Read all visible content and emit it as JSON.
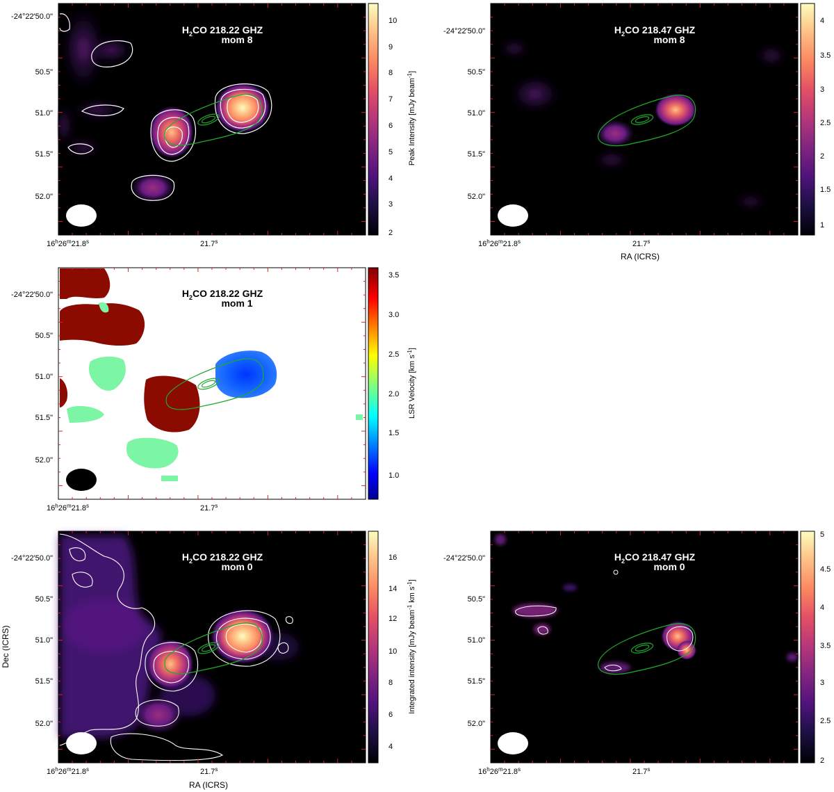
{
  "figure": {
    "panels": [
      {
        "id": "p1",
        "title_main": "H",
        "title_sub": "2",
        "title_rest": "CO 218.22 GHZ",
        "title_line2": "mom 8",
        "dec_ticks": [
          "-24°22'50.0\"",
          "50.5\"",
          "51.0\"",
          "51.5\"",
          "52.0\""
        ],
        "ra_ticks": [
          "16",
          "h",
          "26",
          "m",
          "21.8",
          "s",
          "21.7",
          "s"
        ],
        "xlabel": "",
        "ylabel": "",
        "cbar_ticks": [
          "10",
          "9",
          "8",
          "7",
          "6",
          "5",
          "4",
          "3",
          "2"
        ],
        "cbar_label": "Peak Intensity [mJy beam",
        "cbar_label_sup": "-1",
        "cbar_label_end": "]",
        "cmap": "magma",
        "background": "#000000",
        "beam_color": "#ffffff"
      },
      {
        "id": "p2",
        "title_main": "H",
        "title_sub": "2",
        "title_rest": "CO 218.47 GHZ",
        "title_line2": "mom 8",
        "dec_ticks": [
          "-24°22'50.0\"",
          "50.5\"",
          "51.0\"",
          "51.5\"",
          "52.0\""
        ],
        "ra_ticks": [
          "16",
          "h",
          "26",
          "m",
          "21.8",
          "s",
          "21.7",
          "s"
        ],
        "xlabel": "RA (ICRS)",
        "ylabel": "",
        "cbar_ticks": [
          "4",
          "3.5",
          "3",
          "2.5",
          "2",
          "1.5",
          "1"
        ],
        "cbar_label": "",
        "cbar_label_sup": "",
        "cbar_label_end": "",
        "cmap": "magma",
        "background": "#000000",
        "beam_color": "#ffffff"
      },
      {
        "id": "p3",
        "title_main": "H",
        "title_sub": "2",
        "title_rest": "CO 218.22 GHZ",
        "title_line2": "mom 1",
        "dec_ticks": [
          "-24°22'50.0\"",
          "50.5\"",
          "51.0\"",
          "51.5\"",
          "52.0\""
        ],
        "ra_ticks": [
          "16",
          "h",
          "26",
          "m",
          "21.8",
          "s",
          "21.7",
          "s"
        ],
        "xlabel": "",
        "ylabel": "",
        "cbar_ticks": [
          "3.5",
          "3.0",
          "2.5",
          "2.0",
          "1.5",
          "1.0"
        ],
        "cbar_label": "LSR Velocity [km s",
        "cbar_label_sup": "-1",
        "cbar_label_end": "]",
        "cmap": "jet",
        "background": "#ffffff",
        "beam_color": "#000000"
      },
      {
        "id": "p4",
        "title_main": "H",
        "title_sub": "2",
        "title_rest": "CO 218.22 GHZ",
        "title_line2": "mom 0",
        "dec_ticks": [
          "-24°22'50.0\"",
          "50.5\"",
          "51.0\"",
          "51.5\"",
          "52.0\""
        ],
        "ra_ticks": [
          "16",
          "h",
          "26",
          "m",
          "21.8",
          "s",
          "21.7",
          "s"
        ],
        "xlabel": "RA (ICRS)",
        "ylabel": "Dec (ICRS)",
        "cbar_ticks": [
          "16",
          "14",
          "12",
          "10",
          "8",
          "6",
          "4"
        ],
        "cbar_label": "Integrated intensity [mJy beam",
        "cbar_label_sup": "-1",
        "cbar_label_end": " km s",
        "cbar_label_sup2": "-1",
        "cbar_label_end2": "]",
        "cmap": "magma",
        "background": "#000000",
        "beam_color": "#ffffff"
      },
      {
        "id": "p5",
        "title_main": "H",
        "title_sub": "2",
        "title_rest": "CO 218.47 GHZ",
        "title_line2": "mom 0",
        "dec_ticks": [
          "-24°22'50.0\"",
          "50.5\"",
          "51.0\"",
          "51.5\"",
          "52.0\""
        ],
        "ra_ticks": [
          "16",
          "h",
          "26",
          "m",
          "21.8",
          "s",
          "21.7",
          "s"
        ],
        "xlabel": "",
        "ylabel": "",
        "cbar_ticks": [
          "5",
          "4.5",
          "4",
          "3.5",
          "3",
          "2.5",
          "2"
        ],
        "cbar_label": "",
        "cbar_label_sup": "",
        "cbar_label_end": "",
        "cmap": "magma",
        "background": "#000000",
        "beam_color": "#ffffff"
      }
    ]
  },
  "chart_data": [
    {
      "type": "heatmap",
      "panel": "p1",
      "quantity": "mom 8",
      "colorbar_range": [
        1.9,
        10.5
      ],
      "xlabel": "",
      "ylabel": "",
      "x_ticks": [
        "16h26m21.8s",
        "21.7s"
      ],
      "y_ticks": [
        "-24°22'50.0\"",
        "50.5\"",
        "51.0\"",
        "51.5\"",
        "52.0\""
      ],
      "sources": [
        {
          "ra_s": 21.688,
          "dec_arcsec": 51.0,
          "peak": 10.3
        },
        {
          "ra_s": 21.734,
          "dec_arcsec": 51.25,
          "peak": 6.5
        },
        {
          "ra_s": 21.749,
          "dec_arcsec": 51.95,
          "peak": 3.6
        }
      ]
    },
    {
      "type": "heatmap",
      "panel": "p2",
      "quantity": "mom 8",
      "colorbar_range": [
        0.85,
        4.3
      ],
      "xlabel": "RA (ICRS)",
      "ylabel": "",
      "x_ticks": [
        "16h26m21.8s",
        "21.7s"
      ],
      "y_ticks": [
        "-24°22'50.0\"",
        "50.5\"",
        "51.0\"",
        "51.5\"",
        "52.0\""
      ],
      "sources": [
        {
          "ra_s": 21.686,
          "dec_arcsec": 50.97,
          "peak": 3.4
        },
        {
          "ra_s": 21.725,
          "dec_arcsec": 51.22,
          "peak": 2.4
        }
      ]
    },
    {
      "type": "heatmap",
      "panel": "p3",
      "quantity": "mom 1",
      "colorbar_range": [
        0.7,
        3.6
      ],
      "xlabel": "",
      "ylabel": "",
      "x_ticks": [
        "16h26m21.8s",
        "21.7s"
      ],
      "y_ticks": [
        "-24°22'50.0\"",
        "50.5\"",
        "51.0\"",
        "51.5\"",
        "52.0\""
      ],
      "regions": [
        {
          "ra_s": 21.686,
          "dec_arcsec": 51.0,
          "velocity": 0.9
        },
        {
          "ra_s": 21.733,
          "dec_arcsec": 51.25,
          "velocity": 3.5
        },
        {
          "ra_s": 21.761,
          "dec_arcsec": 50.3,
          "velocity": 3.5
        },
        {
          "ra_s": 21.757,
          "dec_arcsec": 51.95,
          "velocity": 2.0
        }
      ]
    },
    {
      "type": "heatmap",
      "panel": "p4",
      "quantity": "mom 0",
      "colorbar_range": [
        3.0,
        17.5
      ],
      "xlabel": "RA (ICRS)",
      "ylabel": "Dec (ICRS)",
      "x_ticks": [
        "16h26m21.8s",
        "21.7s"
      ],
      "y_ticks": [
        "-24°22'50.0\"",
        "50.5\"",
        "51.0\"",
        "51.5\"",
        "52.0\""
      ],
      "sources": [
        {
          "ra_s": 21.689,
          "dec_arcsec": 50.97,
          "peak": 17.0
        },
        {
          "ra_s": 21.734,
          "dec_arcsec": 51.3,
          "peak": 10.5
        },
        {
          "ra_s": 21.754,
          "dec_arcsec": 51.95,
          "peak": 8.0
        }
      ]
    },
    {
      "type": "heatmap",
      "panel": "p5",
      "quantity": "mom 0",
      "colorbar_range": [
        2.0,
        5.0
      ],
      "xlabel": "",
      "ylabel": "",
      "x_ticks": [
        "16h26m21.8s",
        "21.7s"
      ],
      "y_ticks": [
        "-24°22'50.0\"",
        "50.5\"",
        "51.0\"",
        "51.5\"",
        "52.0\""
      ],
      "sources": [
        {
          "ra_s": 21.686,
          "dec_arcsec": 50.95,
          "peak": 4.8
        },
        {
          "ra_s": 21.78,
          "dec_arcsec": 50.75,
          "peak": 3.6
        }
      ]
    }
  ]
}
